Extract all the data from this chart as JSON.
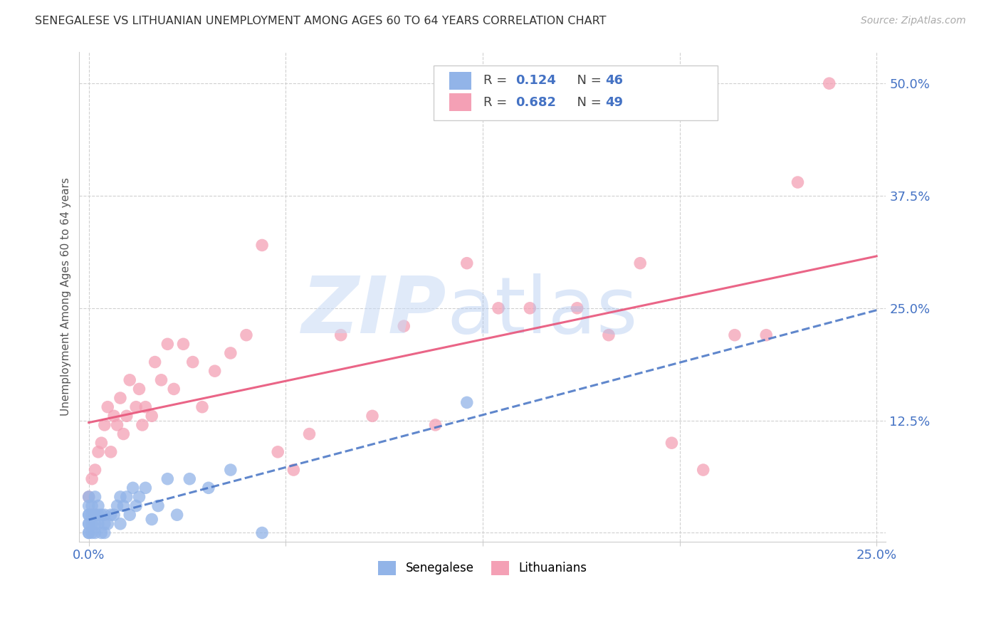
{
  "title": "SENEGALESE VS LITHUANIAN UNEMPLOYMENT AMONG AGES 60 TO 64 YEARS CORRELATION CHART",
  "source": "Source: ZipAtlas.com",
  "ylabel": "Unemployment Among Ages 60 to 64 years",
  "xlim": [
    0.0,
    0.25
  ],
  "ylim": [
    -0.01,
    0.535
  ],
  "senegalese_color": "#92b4e8",
  "lithuanian_color": "#f4a0b5",
  "senegalese_line_color": "#4472c4",
  "lithuanian_line_color": "#e8547a",
  "r_senegalese": 0.124,
  "n_senegalese": 46,
  "r_lithuanian": 0.682,
  "n_lithuanian": 49,
  "ytick_vals": [
    0.0,
    0.125,
    0.25,
    0.375,
    0.5
  ],
  "ytick_labels": [
    "",
    "12.5%",
    "25.0%",
    "37.5%",
    "50.0%"
  ],
  "xtick_vals": [
    0.0,
    0.0625,
    0.125,
    0.1875,
    0.25
  ],
  "xtick_labels": [
    "0.0%",
    "",
    "",
    "",
    "25.0%"
  ],
  "senegalese_x": [
    0.0,
    0.0,
    0.0,
    0.0,
    0.0,
    0.0,
    0.0,
    0.0,
    0.001,
    0.001,
    0.001,
    0.001,
    0.002,
    0.002,
    0.002,
    0.002,
    0.003,
    0.003,
    0.003,
    0.004,
    0.004,
    0.005,
    0.005,
    0.005,
    0.006,
    0.007,
    0.008,
    0.009,
    0.01,
    0.01,
    0.011,
    0.012,
    0.013,
    0.014,
    0.015,
    0.016,
    0.018,
    0.02,
    0.022,
    0.025,
    0.028,
    0.032,
    0.038,
    0.045,
    0.055,
    0.12
  ],
  "senegalese_y": [
    0.0,
    0.0,
    0.01,
    0.01,
    0.02,
    0.02,
    0.03,
    0.04,
    0.0,
    0.01,
    0.02,
    0.03,
    0.0,
    0.01,
    0.02,
    0.04,
    0.01,
    0.02,
    0.03,
    0.0,
    0.02,
    0.0,
    0.01,
    0.02,
    0.01,
    0.02,
    0.02,
    0.03,
    0.01,
    0.04,
    0.03,
    0.04,
    0.02,
    0.05,
    0.03,
    0.04,
    0.05,
    0.015,
    0.03,
    0.06,
    0.02,
    0.06,
    0.05,
    0.07,
    0.0,
    0.145
  ],
  "lithuanian_x": [
    0.0,
    0.001,
    0.002,
    0.003,
    0.004,
    0.005,
    0.006,
    0.007,
    0.008,
    0.009,
    0.01,
    0.011,
    0.012,
    0.013,
    0.015,
    0.016,
    0.017,
    0.018,
    0.02,
    0.021,
    0.023,
    0.025,
    0.027,
    0.03,
    0.033,
    0.036,
    0.04,
    0.045,
    0.05,
    0.055,
    0.06,
    0.065,
    0.07,
    0.08,
    0.09,
    0.1,
    0.11,
    0.12,
    0.13,
    0.14,
    0.155,
    0.165,
    0.175,
    0.185,
    0.195,
    0.205,
    0.215,
    0.225,
    0.235
  ],
  "lithuanian_y": [
    0.04,
    0.06,
    0.07,
    0.09,
    0.1,
    0.12,
    0.14,
    0.09,
    0.13,
    0.12,
    0.15,
    0.11,
    0.13,
    0.17,
    0.14,
    0.16,
    0.12,
    0.14,
    0.13,
    0.19,
    0.17,
    0.21,
    0.16,
    0.21,
    0.19,
    0.14,
    0.18,
    0.2,
    0.22,
    0.32,
    0.09,
    0.07,
    0.11,
    0.22,
    0.13,
    0.23,
    0.12,
    0.3,
    0.25,
    0.25,
    0.25,
    0.22,
    0.3,
    0.1,
    0.07,
    0.22,
    0.22,
    0.39,
    0.5
  ]
}
